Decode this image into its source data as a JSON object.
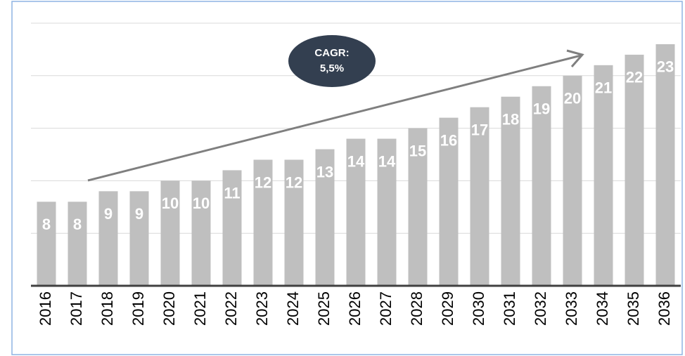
{
  "chart_data": {
    "type": "bar",
    "categories": [
      "2016",
      "2017",
      "2018",
      "2019",
      "2020",
      "2021",
      "2022",
      "2023",
      "2024",
      "2025",
      "2026",
      "2027",
      "2028",
      "2029",
      "2030",
      "2031",
      "2032",
      "2033",
      "2034",
      "2035",
      "2036"
    ],
    "values": [
      8,
      8,
      9,
      9,
      10,
      10,
      11,
      12,
      12,
      13,
      14,
      14,
      15,
      16,
      17,
      18,
      19,
      20,
      21,
      22,
      23
    ],
    "color": "#bfbfbf",
    "ylim": [
      0,
      25
    ],
    "yticks": [
      0,
      5,
      10,
      15,
      20,
      25
    ],
    "grid": true,
    "annotation": [
      "CAGR:",
      "5,5%"
    ]
  }
}
